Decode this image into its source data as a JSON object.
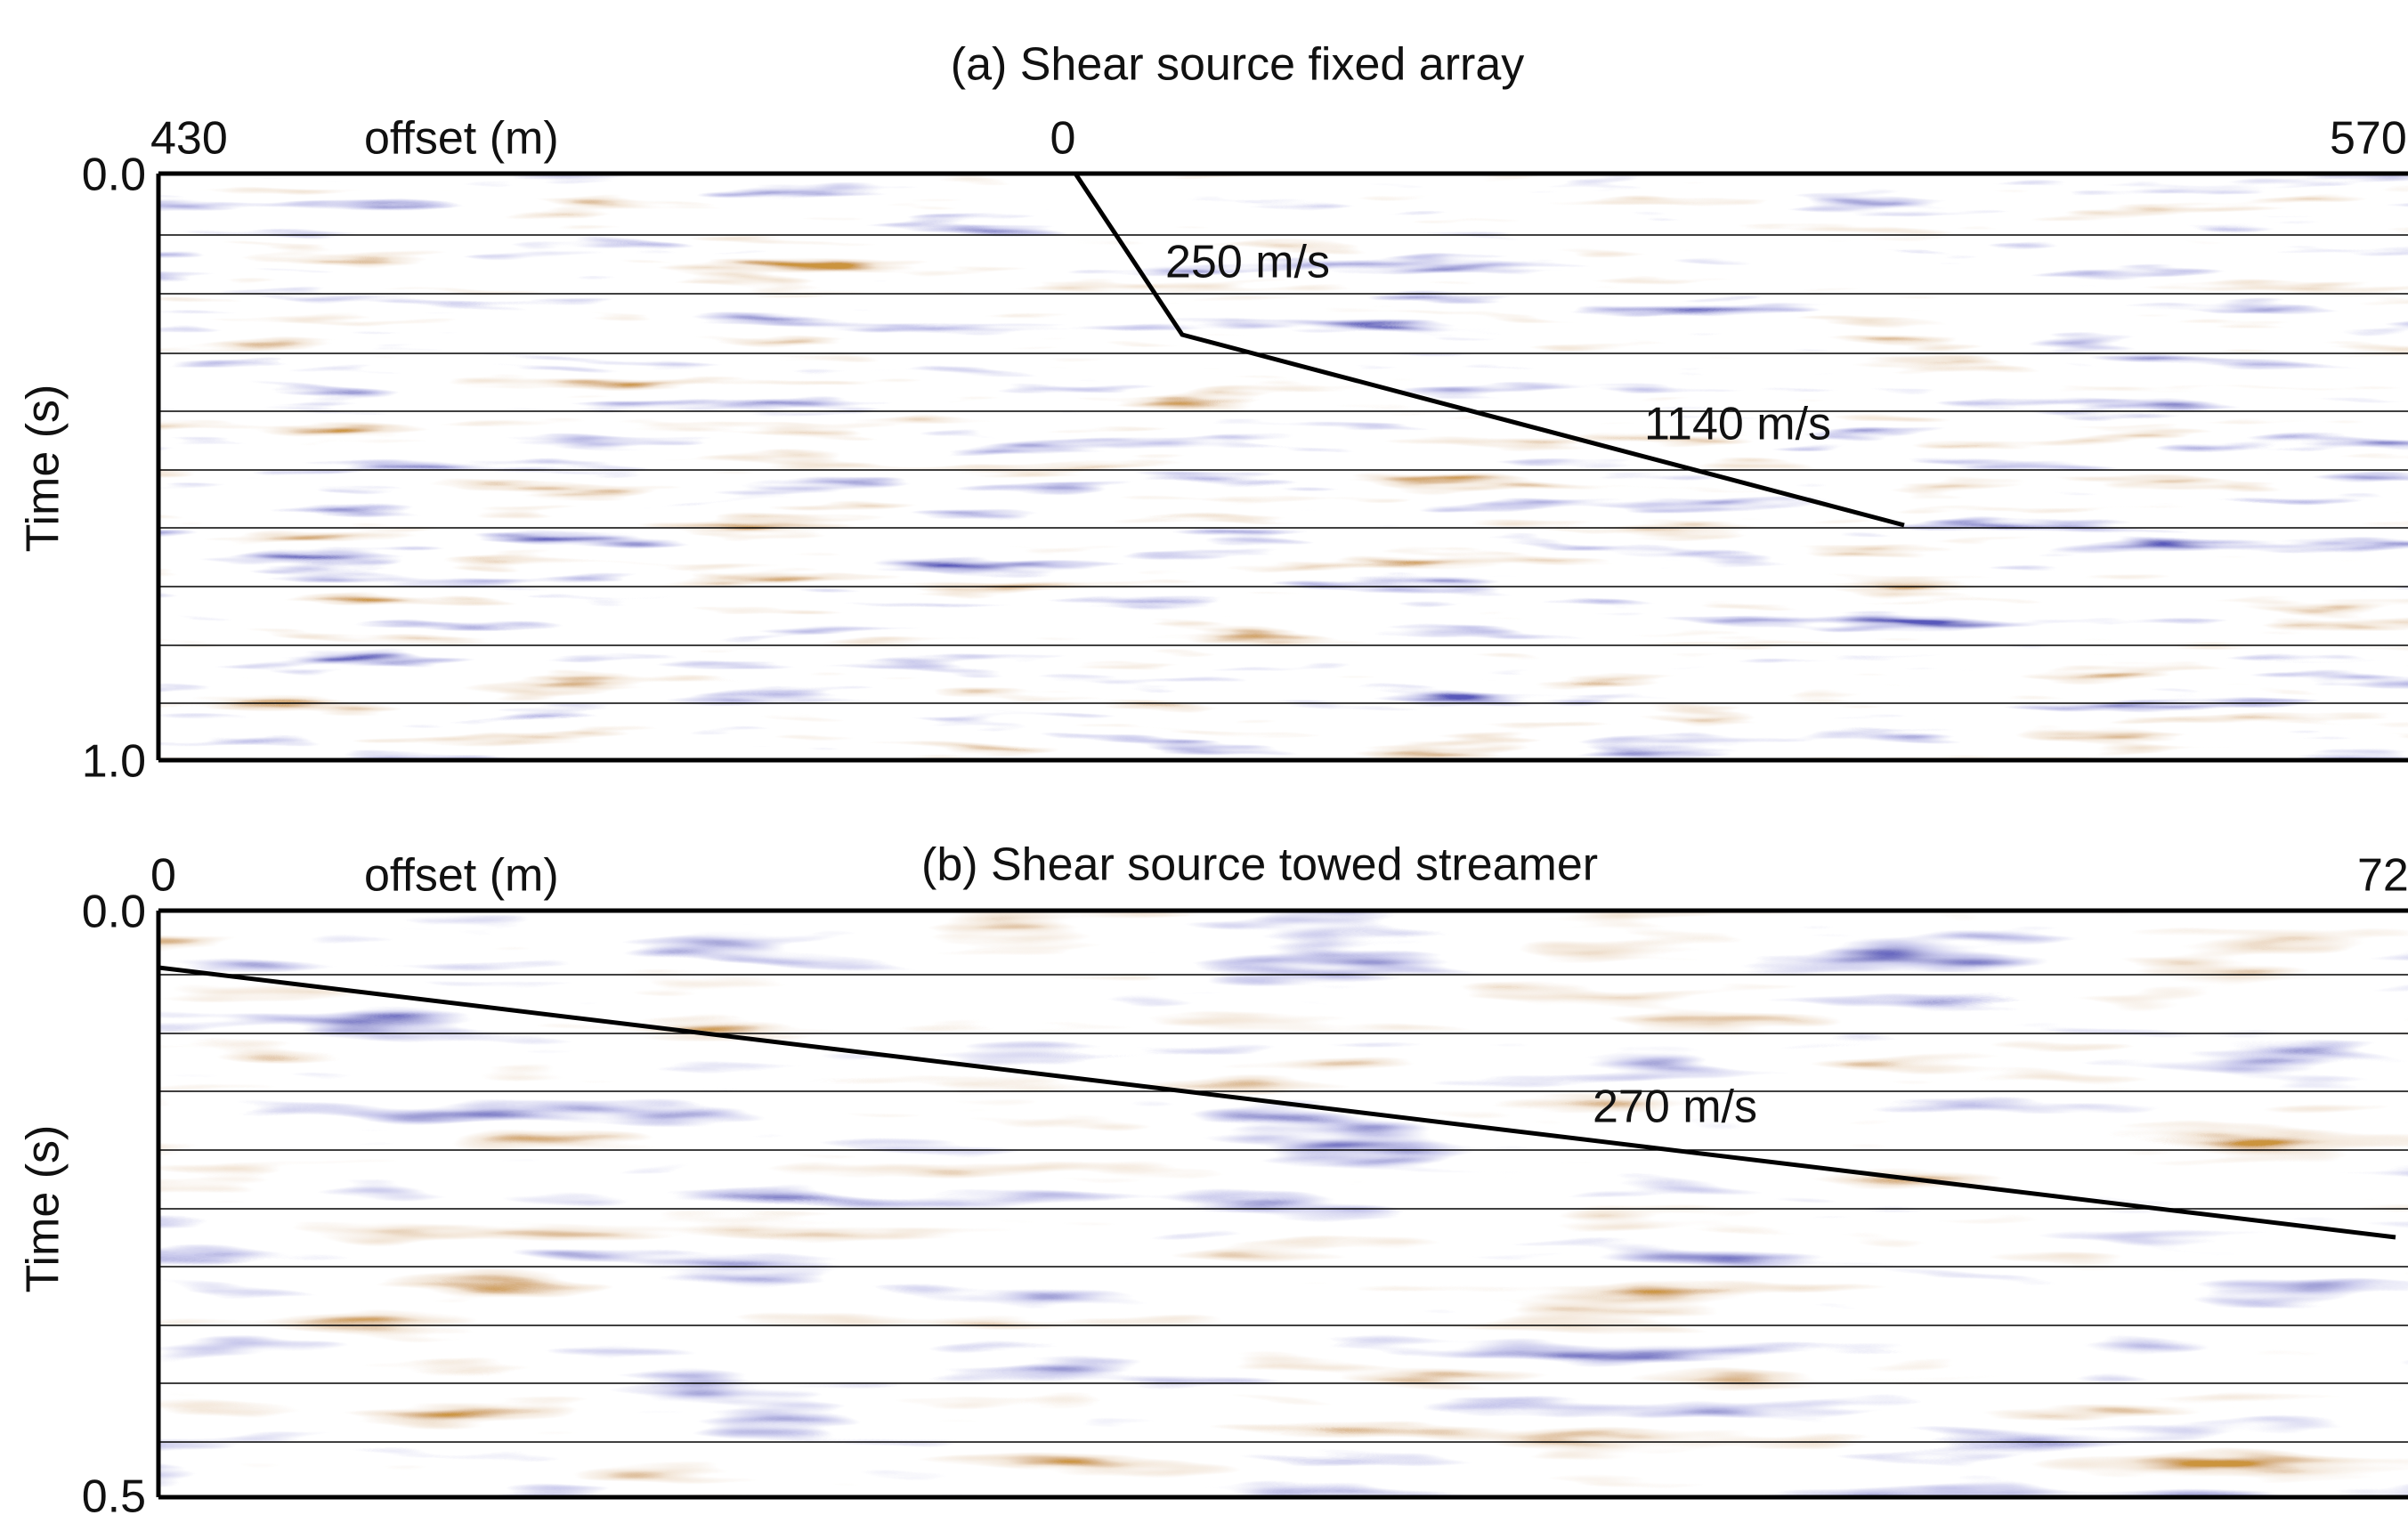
{
  "panels": [
    {
      "title": "(a) Shear source fixed array",
      "x_axis_label": "offset (m)",
      "x_ticks": [
        "430",
        "0",
        "570"
      ],
      "y_axis_label": "Time (s)",
      "y_ticks": [
        "0.0",
        "1.0"
      ],
      "annotations": [
        "250 m/s",
        "1140 m/s"
      ]
    },
    {
      "title": "(b) Shear source towed streamer",
      "x_axis_label": "offset (m)",
      "x_ticks": [
        "0",
        "72"
      ],
      "y_axis_label": "Time (s)",
      "y_ticks": [
        "0.0",
        "0.5"
      ],
      "annotations": [
        "270 m/s"
      ]
    }
  ]
}
